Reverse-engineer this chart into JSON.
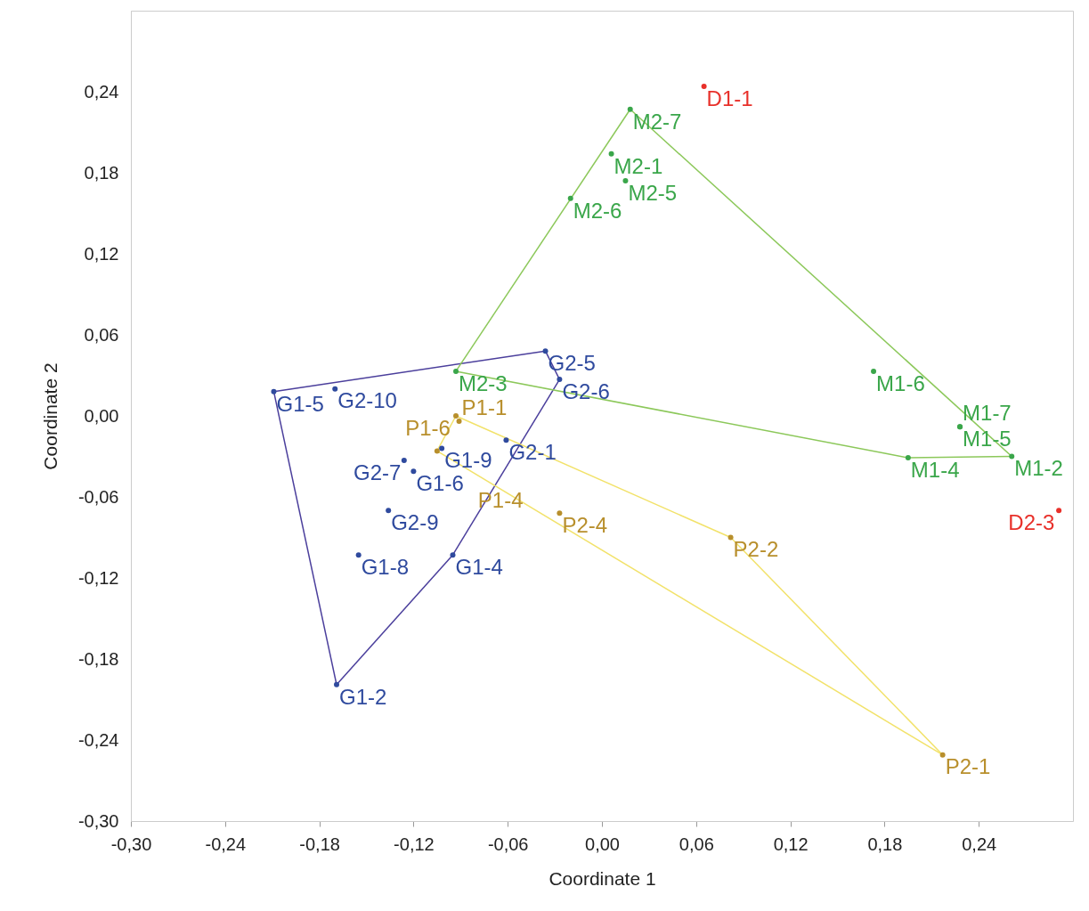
{
  "chart_data": {
    "type": "scatter",
    "xlabel": "Coordinate 1",
    "ylabel": "Coordinate 2",
    "xlim": [
      -0.3,
      0.3
    ],
    "ylim": [
      -0.3,
      0.3
    ],
    "xticks": [
      {
        "value": -0.3,
        "label": "-0,30"
      },
      {
        "value": -0.24,
        "label": "-0,24"
      },
      {
        "value": -0.18,
        "label": "-0,18"
      },
      {
        "value": -0.12,
        "label": "-0,12"
      },
      {
        "value": -0.06,
        "label": "-0,06"
      },
      {
        "value": 0,
        "label": "0,00"
      },
      {
        "value": 0.06,
        "label": "0,06"
      },
      {
        "value": 0.12,
        "label": "0,12"
      },
      {
        "value": 0.18,
        "label": "0,18"
      },
      {
        "value": 0.24,
        "label": "0,24"
      }
    ],
    "yticks": [
      {
        "value": -0.3,
        "label": "-0,30"
      },
      {
        "value": -0.24,
        "label": "-0,24"
      },
      {
        "value": -0.18,
        "label": "-0,18"
      },
      {
        "value": -0.12,
        "label": "-0,12"
      },
      {
        "value": -0.06,
        "label": "-0,06"
      },
      {
        "value": 0,
        "label": "0,00"
      },
      {
        "value": 0.06,
        "label": "0,06"
      },
      {
        "value": 0.12,
        "label": "0,12"
      },
      {
        "value": 0.18,
        "label": "0,18"
      },
      {
        "value": 0.24,
        "label": "0,24"
      }
    ],
    "grid": false,
    "marker": "circle",
    "series": [
      {
        "type": "line",
        "marker": "none",
        "color": "#4b3f9c",
        "x": [
          -0.209,
          -0.036
        ],
        "values": [
          0.018,
          0.048
        ]
      },
      {
        "type": "line",
        "marker": "none",
        "color": "#4b3f9c",
        "x": [
          -0.036,
          -0.027
        ],
        "values": [
          0.048,
          0.027
        ]
      },
      {
        "type": "line",
        "marker": "none",
        "color": "#4b3f9c",
        "x": [
          -0.027,
          -0.095
        ],
        "values": [
          0.027,
          -0.103
        ]
      },
      {
        "type": "line",
        "marker": "none",
        "color": "#4b3f9c",
        "x": [
          -0.095,
          -0.169
        ],
        "values": [
          -0.103,
          -0.199
        ]
      },
      {
        "type": "line",
        "marker": "none",
        "color": "#4b3f9c",
        "x": [
          -0.169,
          -0.209
        ],
        "values": [
          -0.199,
          0.018
        ]
      },
      {
        "type": "line",
        "marker": "none",
        "color": "#8cc85a",
        "x": [
          -0.093,
          0.018
        ],
        "values": [
          0.033,
          0.227
        ]
      },
      {
        "type": "line",
        "marker": "none",
        "color": "#8cc85a",
        "x": [
          0.018,
          0.261
        ],
        "values": [
          0.227,
          -0.03
        ]
      },
      {
        "type": "line",
        "marker": "none",
        "color": "#8cc85a",
        "x": [
          0.261,
          0.195
        ],
        "values": [
          -0.03,
          -0.031
        ]
      },
      {
        "type": "line",
        "marker": "none",
        "color": "#8cc85a",
        "x": [
          0.195,
          -0.093
        ],
        "values": [
          -0.031,
          0.033
        ]
      },
      {
        "type": "line",
        "marker": "none",
        "color": "#f2e26a",
        "x": [
          -0.093,
          0.082
        ],
        "values": [
          0.0,
          -0.09
        ]
      },
      {
        "type": "line",
        "marker": "none",
        "color": "#f2e26a",
        "x": [
          0.082,
          0.217
        ],
        "values": [
          -0.09,
          -0.251
        ]
      },
      {
        "type": "line",
        "marker": "none",
        "color": "#f2e26a",
        "x": [
          0.217,
          -0.105
        ],
        "values": [
          -0.251,
          -0.026
        ]
      },
      {
        "type": "line",
        "marker": "none",
        "color": "#f2e26a",
        "x": [
          -0.105,
          -0.093
        ],
        "values": [
          -0.026,
          0.0
        ]
      },
      {
        "color": "#2f4a9e",
        "x": [
          -0.209,
          -0.17,
          -0.036,
          -0.027,
          -0.126,
          -0.12,
          -0.102,
          -0.061,
          -0.136,
          -0.155,
          -0.095,
          -0.169
        ],
        "values": [
          0.018,
          0.02,
          0.048,
          0.027,
          -0.033,
          -0.041,
          -0.024,
          -0.018,
          -0.07,
          -0.103,
          -0.103,
          -0.199
        ],
        "value_labels": [
          "G1-5",
          "G2-10",
          "G2-5",
          "G2-6",
          "G2-7",
          "G1-6",
          "G1-9",
          "G2-1",
          "G2-9",
          "G1-8",
          "G1-4",
          "G1-2"
        ]
      },
      {
        "color": "#3aa64a",
        "x": [
          0.018,
          0.006,
          0.015,
          -0.02,
          -0.093,
          0.173,
          0.228,
          0.261,
          0.195,
          0.228
        ],
        "values": [
          0.227,
          0.194,
          0.174,
          0.161,
          0.033,
          0.033,
          -0.008,
          -0.03,
          -0.031,
          -0.008
        ],
        "value_labels": [
          "M2-7",
          "M2-1",
          "M2-5",
          "M2-6",
          "M2-3",
          "M1-6",
          "M1-5",
          "M1-2",
          "M1-4",
          "M1-7"
        ]
      },
      {
        "color": "#e8302a",
        "x": [
          0.065,
          0.291
        ],
        "values": [
          0.244,
          -0.07
        ],
        "value_labels": [
          "D1-1",
          "D2-3"
        ]
      },
      {
        "color": "#b88f2c",
        "x": [
          -0.093,
          -0.091,
          -0.105,
          -0.027,
          0.082,
          0.217
        ],
        "values": [
          0.0,
          -0.004,
          -0.026,
          -0.072,
          -0.09,
          -0.251
        ],
        "value_labels": [
          "P1-6",
          "P1-1",
          "P1-4",
          "P2-4",
          "P2-2",
          "P2-1"
        ]
      }
    ]
  }
}
